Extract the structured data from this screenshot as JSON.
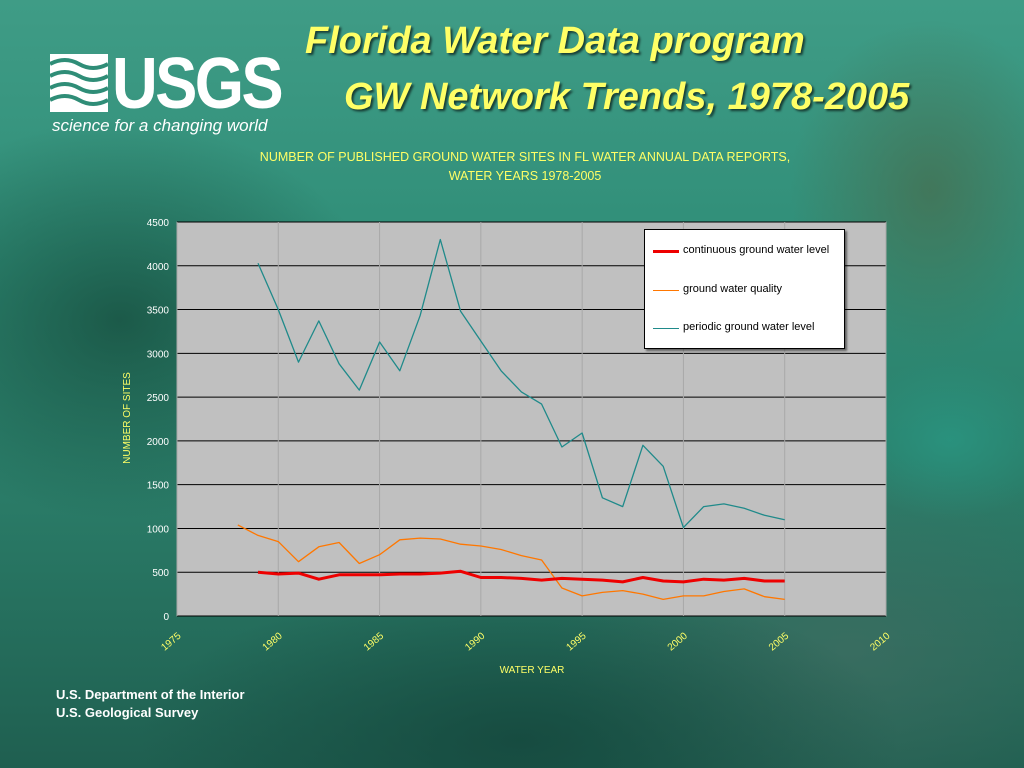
{
  "header": {
    "logo": {
      "wordmark": "USGS",
      "tagline": "science for a changing world"
    },
    "title_line1": "Florida Water Data program",
    "title_line2": "GW Network Trends, 1978-2005"
  },
  "footer": {
    "line1": "U.S. Department of the Interior",
    "line2": "U.S. Geological Survey"
  },
  "colors": {
    "title": "#ffff66",
    "continuous": "#ee0000",
    "quality": "#ff7700",
    "periodic": "#1f8a8a"
  },
  "chart_data": {
    "type": "line",
    "title_line1": "NUMBER OF PUBLISHED GROUND WATER SITES IN FL WATER ANNUAL DATA REPORTS,",
    "title_line2": "WATER YEARS 1978-2005",
    "xlabel": "WATER YEAR",
    "ylabel": "NUMBER OF SITES",
    "xlim": [
      1975,
      2010
    ],
    "ylim": [
      0,
      4500
    ],
    "xticks": [
      1975,
      1980,
      1985,
      1990,
      1995,
      2000,
      2005,
      2010
    ],
    "yticks": [
      0,
      500,
      1000,
      1500,
      2000,
      2500,
      3000,
      3500,
      4000,
      4500
    ],
    "grid": "horizontal",
    "legend_position": "top-right",
    "series": [
      {
        "name": "continuous ground water level",
        "color": "#ee0000",
        "width": 3,
        "x": [
          1979,
          1980,
          1981,
          1982,
          1983,
          1984,
          1985,
          1986,
          1987,
          1988,
          1989,
          1990,
          1991,
          1992,
          1993,
          1994,
          1995,
          1996,
          1997,
          1998,
          1999,
          2000,
          2001,
          2002,
          2003,
          2004,
          2005
        ],
        "y": [
          500,
          480,
          490,
          420,
          470,
          470,
          470,
          480,
          480,
          490,
          510,
          440,
          440,
          430,
          410,
          430,
          420,
          410,
          390,
          440,
          400,
          390,
          420,
          410,
          430,
          400,
          400
        ]
      },
      {
        "name": "ground water quality",
        "color": "#ff7700",
        "width": 1.3,
        "x": [
          1978,
          1979,
          1980,
          1981,
          1982,
          1983,
          1984,
          1985,
          1986,
          1987,
          1988,
          1989,
          1990,
          1991,
          1992,
          1993,
          1994,
          1995,
          1996,
          1997,
          1998,
          1999,
          2000,
          2001,
          2002,
          2003,
          2004,
          2005
        ],
        "y": [
          1040,
          920,
          850,
          620,
          790,
          840,
          600,
          700,
          870,
          890,
          880,
          820,
          800,
          760,
          690,
          640,
          320,
          230,
          270,
          290,
          250,
          190,
          230,
          230,
          280,
          310,
          220,
          190
        ]
      },
      {
        "name": "periodic ground water level",
        "color": "#1f8a8a",
        "width": 1.3,
        "x": [
          1979,
          1980,
          1981,
          1982,
          1983,
          1984,
          1985,
          1986,
          1987,
          1988,
          1989,
          1990,
          1991,
          1992,
          1993,
          1994,
          1995,
          1996,
          1997,
          1998,
          1999,
          2000,
          2001,
          2002,
          2003,
          2004,
          2005
        ],
        "y": [
          4030,
          3500,
          2900,
          3370,
          2880,
          2580,
          3130,
          2800,
          3430,
          4300,
          3480,
          3140,
          2800,
          2560,
          2420,
          1930,
          2090,
          1350,
          1250,
          1950,
          1710,
          1010,
          1250,
          1280,
          1230,
          1150,
          1100
        ]
      }
    ]
  }
}
